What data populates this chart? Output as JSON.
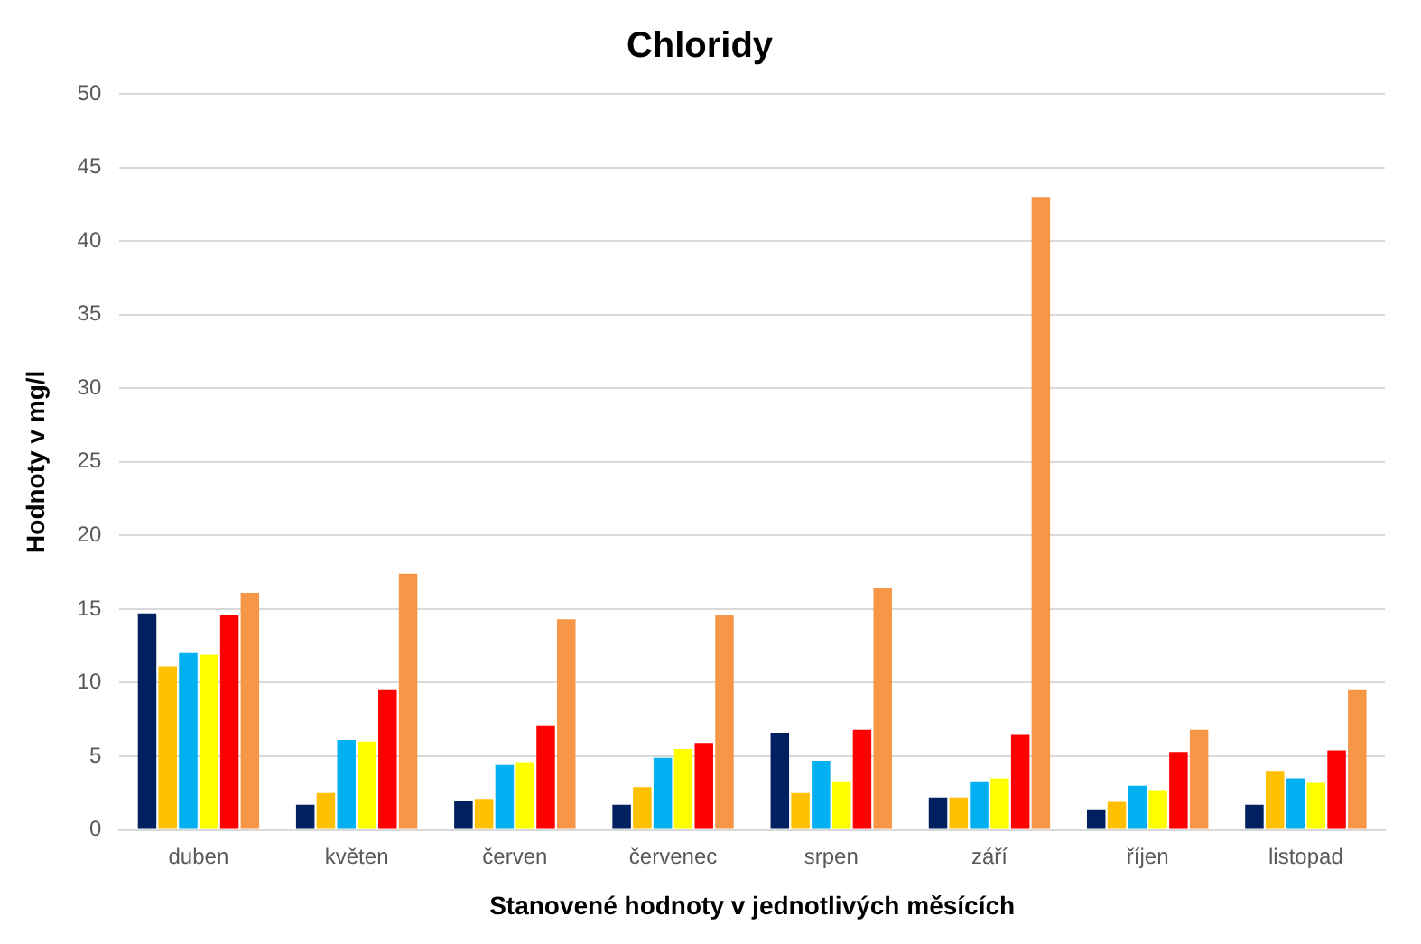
{
  "chart_data": {
    "type": "bar",
    "title": "Chloridy",
    "xlabel": "Stanovené hodnoty v jednotlivých měsících",
    "ylabel": "Hodnoty v mg/l",
    "categories": [
      "duben",
      "květen",
      "červen",
      "červenec",
      "srpen",
      "září",
      "říjen",
      "listopad"
    ],
    "series": [
      {
        "color": "#002060",
        "values": [
          14.7,
          1.7,
          2.0,
          1.7,
          6.6,
          2.2,
          1.4,
          1.7
        ]
      },
      {
        "color": "#ffc000",
        "values": [
          11.1,
          2.5,
          2.1,
          2.9,
          2.5,
          2.2,
          1.9,
          4.0
        ]
      },
      {
        "color": "#00b0f0",
        "values": [
          12.0,
          6.1,
          4.4,
          4.9,
          4.7,
          3.3,
          3.0,
          3.5
        ]
      },
      {
        "color": "#ffff00",
        "values": [
          11.9,
          6.0,
          4.6,
          5.5,
          3.3,
          3.5,
          2.7,
          3.2
        ]
      },
      {
        "color": "#ff0000",
        "values": [
          14.6,
          9.5,
          7.1,
          5.9,
          6.8,
          6.5,
          5.3,
          5.4
        ]
      },
      {
        "color": "#f79646",
        "values": [
          16.1,
          17.4,
          14.3,
          14.6,
          16.4,
          43.0,
          6.8,
          9.5
        ]
      }
    ],
    "ylim": [
      0,
      50
    ],
    "yticks": [
      0,
      5,
      10,
      15,
      20,
      25,
      30,
      35,
      40,
      45,
      50
    ],
    "grid": "y",
    "legend": false
  }
}
